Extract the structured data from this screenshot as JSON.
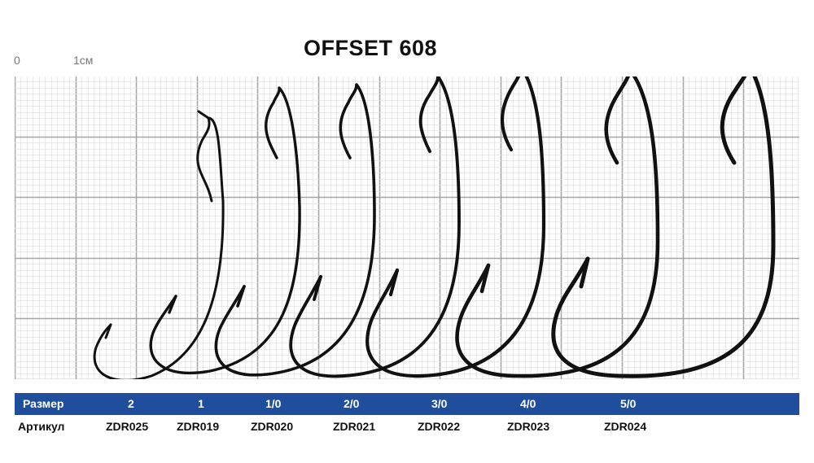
{
  "title": "OFFSET 608",
  "scale": {
    "zero": "0",
    "one_cm": "1см"
  },
  "table": {
    "size_header": "Размер",
    "article_header": "Артикул",
    "sizes": [
      "2",
      "1",
      "1/0",
      "2/0",
      "3/0",
      "4/0",
      "5/0"
    ],
    "articles": [
      "ZDR025",
      "ZDR019",
      "ZDR020",
      "ZDR021",
      "ZDR022",
      "ZDR023",
      "ZDR024"
    ]
  },
  "colors": {
    "header_bar": "#1f4f9c",
    "grid_major": "#a6a6a6",
    "grid_minor": "#e3e3e3",
    "hook": "#111111"
  }
}
